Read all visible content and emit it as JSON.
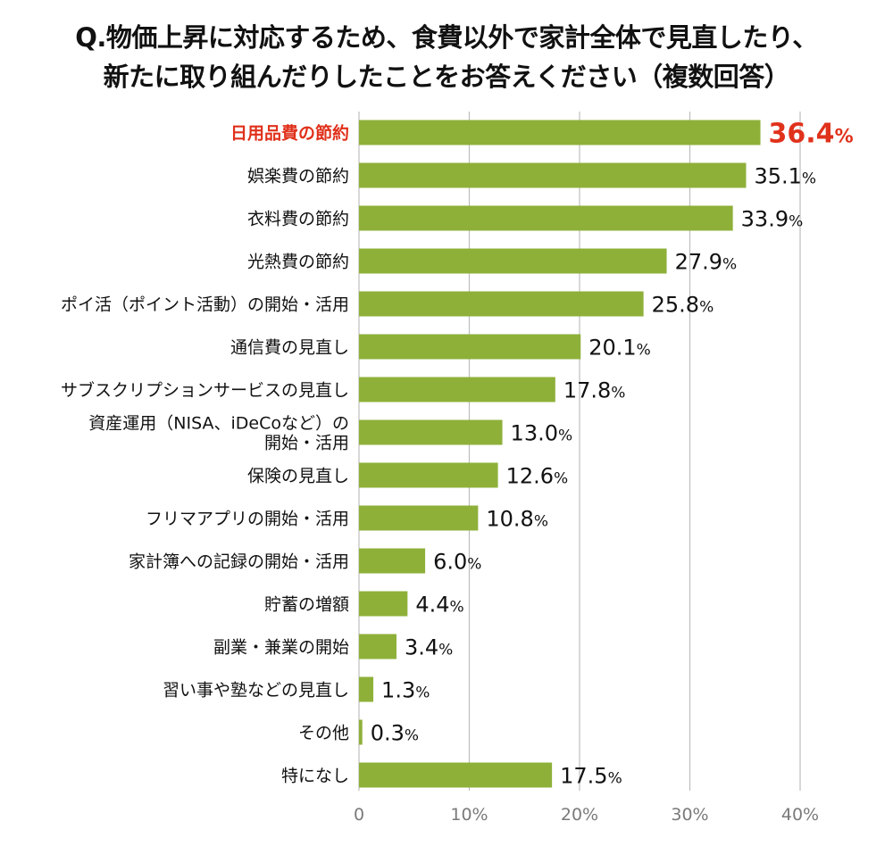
{
  "title": {
    "line1": "Q.物価上昇に対応するため、食費以外で家計全体で見直したり、",
    "line2": "新たに取り組んだりしたことをお答えください（複数回答）"
  },
  "colors": {
    "bar": "#8eb039",
    "highlight": "#e0311b",
    "grid": "#bdbdbd",
    "tick_text": "#7a7a7a",
    "text": "#111111"
  },
  "chart_data": {
    "type": "bar",
    "orientation": "horizontal",
    "categories": [
      "日用品費の節約",
      "娯楽費の節約",
      "衣料費の節約",
      "光熱費の節約",
      "ポイ活（ポイント活動）の開始・活用",
      "通信費の見直し",
      "サブスクリプションサービスの見直し",
      [
        "資産運用（NISA、iDeCoなど）の",
        "開始・活用"
      ],
      "保険の見直し",
      "フリマアプリの開始・活用",
      "家計簿への記録の開始・活用",
      "貯蓄の増額",
      "副業・兼業の開始",
      "習い事や塾などの見直し",
      "その他",
      "特になし"
    ],
    "values": [
      36.4,
      35.1,
      33.9,
      27.9,
      25.8,
      20.1,
      17.8,
      13.0,
      12.6,
      10.8,
      6.0,
      4.4,
      3.4,
      1.3,
      0.3,
      17.5
    ],
    "value_labels": [
      "36.4",
      "35.1",
      "33.9",
      "27.9",
      "25.8",
      "20.1",
      "17.8",
      "13.0",
      "12.6",
      "10.8",
      "6.0",
      "4.4",
      "3.4",
      "1.3",
      "0.3",
      "17.5"
    ],
    "unit": "%",
    "highlight_index": 0,
    "xlim": [
      0,
      40
    ],
    "xticks": [
      0,
      10,
      20,
      30,
      40
    ],
    "xtick_labels": [
      "0",
      "10%",
      "20%",
      "30%",
      "40%"
    ],
    "grid": true,
    "legend": "none"
  }
}
